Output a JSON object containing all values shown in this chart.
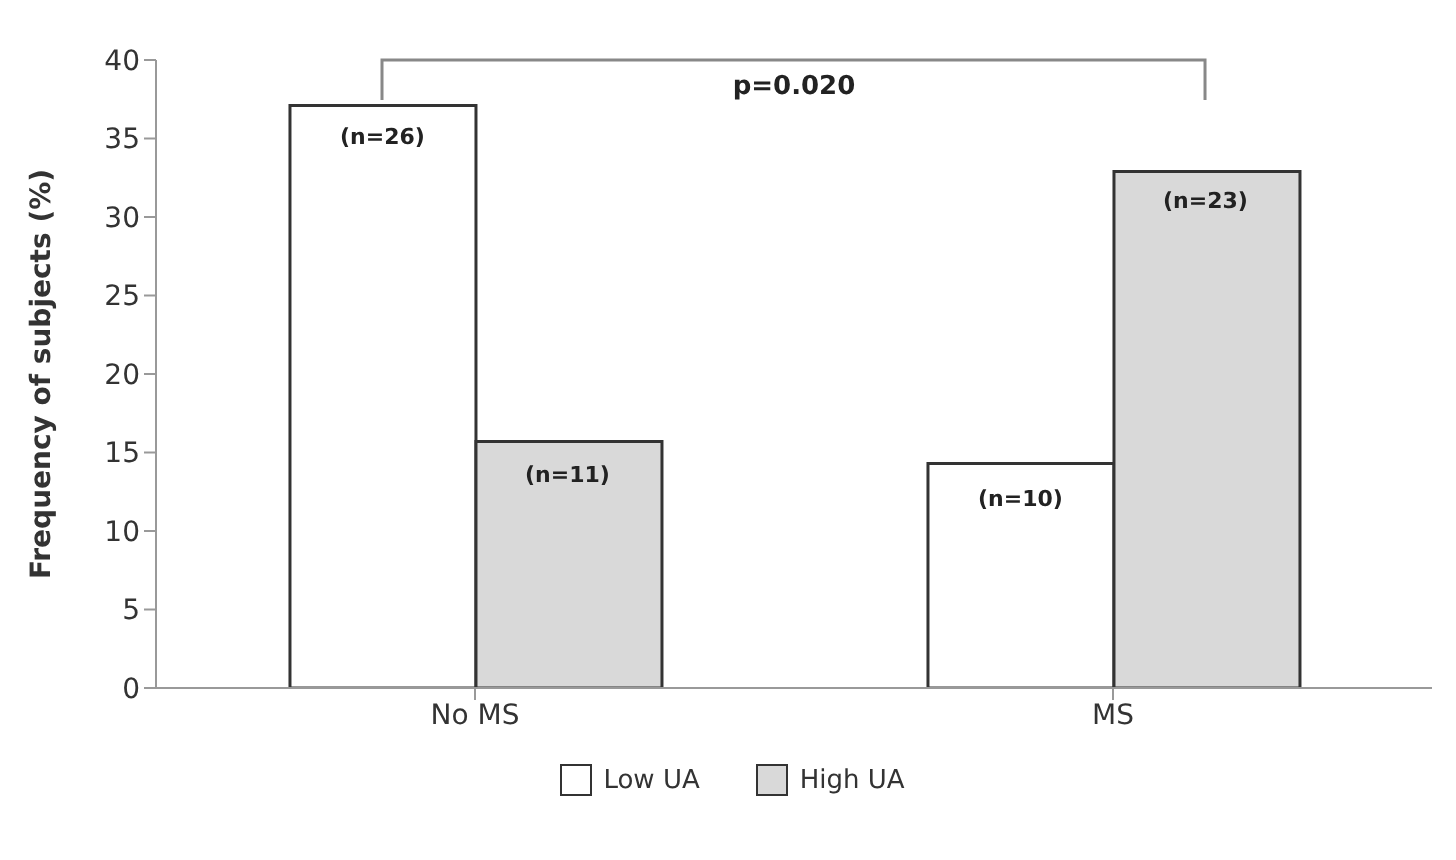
{
  "chart_data": {
    "type": "bar",
    "ylabel": "Frequency of subjects (%)",
    "categories": [
      "No MS",
      "MS"
    ],
    "series": [
      {
        "name": "Low UA",
        "color": "#ffffff",
        "values": [
          37.1,
          14.3
        ]
      },
      {
        "name": "High UA",
        "color": "#d9d9d9",
        "values": [
          15.7,
          32.9
        ]
      }
    ],
    "ylim": [
      0,
      40
    ],
    "yticks": [
      0,
      5,
      10,
      15,
      20,
      25,
      30,
      35,
      40
    ],
    "grid": false,
    "legend": "bottom",
    "annotations": [
      "p=0.020",
      {
        "text": "(n=26)",
        "x": "No MS",
        "y": 35
      },
      {
        "text": "(n=11)",
        "x": "No MS",
        "y": 13.5
      },
      {
        "text": "(n=10)",
        "x": "MS",
        "y": 12
      },
      {
        "text": "(n=23)",
        "x": "MS",
        "y": 31
      }
    ]
  }
}
